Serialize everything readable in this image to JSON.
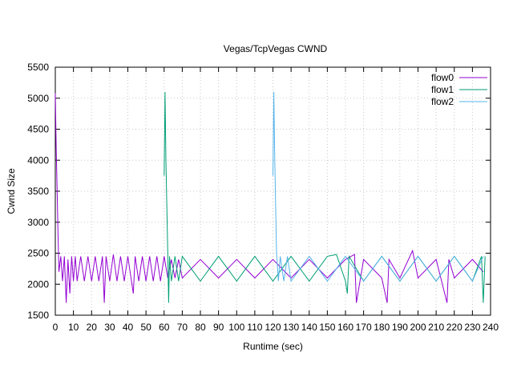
{
  "chart_data": {
    "type": "line",
    "title": "Vegas/TcpVegas CWND",
    "xlabel": "Runtime (sec)",
    "ylabel": "Cwnd Size",
    "xlim": [
      0,
      240
    ],
    "ylim": [
      1500,
      5500
    ],
    "xticks": [
      0,
      10,
      20,
      30,
      40,
      50,
      60,
      70,
      80,
      90,
      100,
      110,
      120,
      130,
      140,
      150,
      160,
      170,
      180,
      190,
      200,
      210,
      220,
      230,
      240
    ],
    "yticks": [
      1500,
      2000,
      2500,
      3000,
      3500,
      4000,
      4500,
      5000,
      5500
    ],
    "x_tick_labels": [
      "0",
      "10",
      "20",
      "30",
      "40",
      "50",
      "60",
      "70",
      "80",
      "90",
      "100",
      "110",
      "120",
      "130",
      "140",
      "150",
      "160",
      "170",
      "180",
      "190",
      "200",
      "210",
      "220",
      "230",
      "240"
    ],
    "y_tick_labels": [
      "1500",
      "2000",
      "2500",
      "3000",
      "3500",
      "4000",
      "4500",
      "5000",
      "5500"
    ],
    "grid": true,
    "legend_position": "top-right",
    "series": [
      {
        "name": "flow0",
        "color": "#9400d3",
        "x": [
          0,
          0.5,
          1,
          1.5,
          2,
          3,
          4,
          5,
          6,
          7,
          8,
          9,
          10,
          11,
          12,
          14,
          16,
          18,
          20,
          22,
          24,
          26,
          27,
          28,
          30,
          32,
          34,
          36,
          38,
          40,
          42,
          43,
          44,
          46,
          48,
          50,
          52,
          54,
          56,
          58,
          60,
          62,
          64,
          66,
          68,
          70,
          80,
          90,
          100,
          110,
          120,
          130,
          140,
          150,
          160,
          165,
          166,
          170,
          180,
          183,
          184,
          190,
          197,
          200,
          210,
          216,
          217,
          220,
          230,
          236
        ],
        "y": [
          5080,
          4200,
          3500,
          2800,
          2200,
          2450,
          2050,
          2450,
          1700,
          2400,
          1850,
          2450,
          2050,
          2450,
          2050,
          2450,
          2050,
          2450,
          2050,
          2450,
          2050,
          2450,
          1700,
          2450,
          2050,
          2480,
          2050,
          2450,
          2050,
          2450,
          2050,
          1850,
          2450,
          2050,
          2450,
          2050,
          2450,
          2050,
          2450,
          2050,
          2450,
          2100,
          2400,
          2100,
          2400,
          2100,
          2400,
          2100,
          2400,
          2100,
          2400,
          2100,
          2400,
          2100,
          2400,
          2480,
          1700,
          2400,
          2100,
          1700,
          2400,
          2100,
          2540,
          2100,
          2400,
          1700,
          2400,
          2100,
          2400,
          2200
        ]
      },
      {
        "name": "flow1",
        "color": "#009e73",
        "x": [
          60,
          60.5,
          61,
          62,
          62.5,
          63,
          64,
          66,
          68,
          70,
          80,
          90,
          100,
          110,
          120,
          130,
          140,
          150,
          155,
          160,
          161,
          162,
          170,
          180,
          190,
          200,
          210,
          220,
          230,
          235,
          236,
          237
        ],
        "y": [
          3750,
          5100,
          4000,
          2500,
          1700,
          2450,
          2050,
          2450,
          2050,
          2450,
          2050,
          2450,
          2050,
          2450,
          2050,
          2450,
          2050,
          2450,
          2480,
          2050,
          1850,
          2450,
          2050,
          2450,
          2050,
          2450,
          2050,
          2450,
          2050,
          2450,
          1700,
          2450
        ]
      },
      {
        "name": "flow2",
        "color": "#56b4e9",
        "x": [
          120,
          120.5,
          121,
          122,
          123,
          124,
          126,
          128,
          130,
          140,
          150,
          160,
          170,
          180,
          190,
          200,
          210,
          220,
          230,
          236
        ],
        "y": [
          3750,
          5100,
          4000,
          2500,
          2050,
          2450,
          2050,
          2450,
          2050,
          2450,
          2050,
          2450,
          2050,
          2450,
          2050,
          2450,
          2050,
          2450,
          2050,
          2450
        ]
      }
    ]
  }
}
